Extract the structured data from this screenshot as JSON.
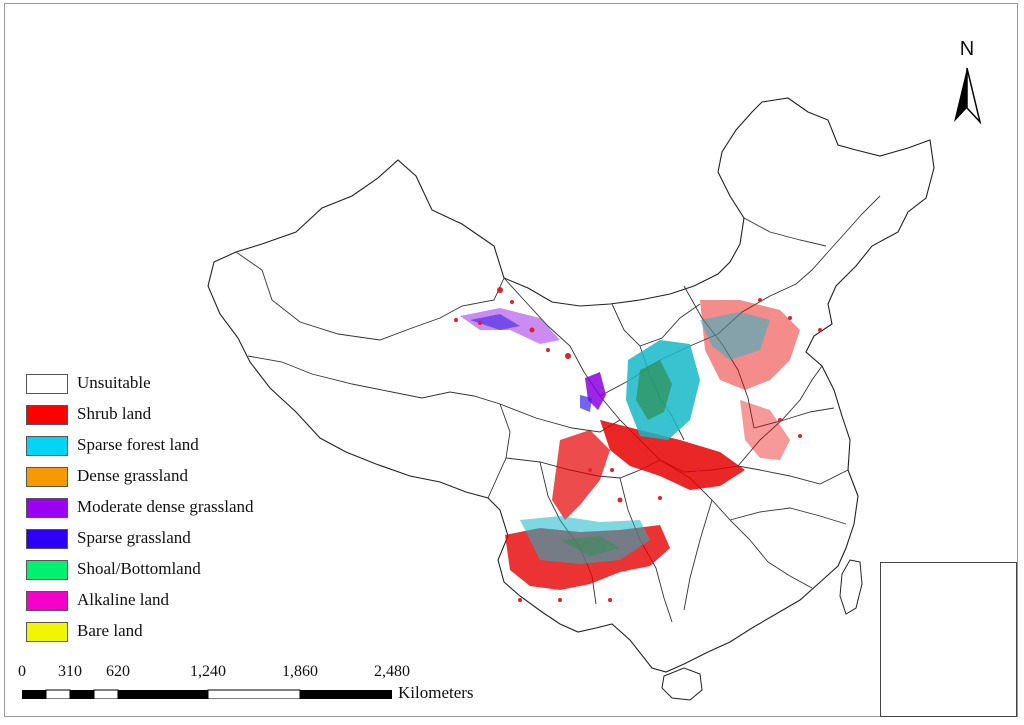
{
  "map": {
    "north_label": "N",
    "scale": {
      "ticks": [
        "0",
        "310",
        "620",
        "1,240",
        "1,860",
        "2,480"
      ],
      "units": "Kilometers"
    },
    "legend": [
      {
        "label": "Unsuitable",
        "color": "#ffffff"
      },
      {
        "label": "Shrub land",
        "color": "#ff0000"
      },
      {
        "label": "Sparse forest land",
        "color": "#00d5f5"
      },
      {
        "label": "Dense grassland",
        "color": "#f59a00"
      },
      {
        "label": "Moderate dense grassland",
        "color": "#9b00f0"
      },
      {
        "label": "Sparse grassland",
        "color": "#2b00f5"
      },
      {
        "label": "Shoal/Bottomland",
        "color": "#00f072"
      },
      {
        "label": "Alkaline land",
        "color": "#f500c8"
      },
      {
        "label": "Bare land",
        "color": "#f0f500"
      }
    ]
  }
}
